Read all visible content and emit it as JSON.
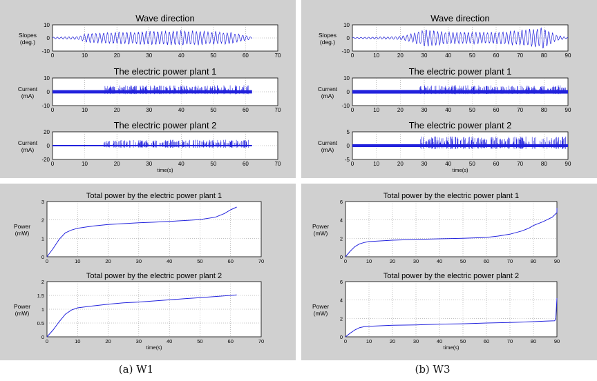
{
  "figure": {
    "captions": [
      "(a) W1",
      "(b) W3"
    ],
    "colors": {
      "line": "#2222dd",
      "panel_bg": "#d0d0d0",
      "plot_bg": "#ffffff",
      "grid": "#888888",
      "axis": "#000000"
    }
  },
  "chart_data": [
    {
      "type": "line",
      "panel": "a-top",
      "title": "Wave direction",
      "ylabel": [
        "Slopes",
        "(deg.)"
      ],
      "xlabel": "",
      "xlim": [
        0,
        70
      ],
      "ylim": [
        -10,
        10
      ],
      "xticks": [
        0,
        10,
        20,
        30,
        40,
        50,
        60,
        70
      ],
      "yticks": [
        -10,
        0,
        10
      ],
      "signal": {
        "kind": "oscillation",
        "x_start": 0,
        "x_end": 62,
        "amplitude_envelope": [
          [
            0,
            0.5
          ],
          [
            8,
            1
          ],
          [
            10,
            3
          ],
          [
            20,
            4
          ],
          [
            40,
            5
          ],
          [
            55,
            4
          ],
          [
            60,
            2
          ],
          [
            62,
            0.5
          ]
        ],
        "period": 1.2
      },
      "grid": true
    },
    {
      "type": "line",
      "panel": "a-top",
      "title": "The electric power plant 1",
      "ylabel": [
        "Current",
        "(mA)"
      ],
      "xlabel": "",
      "xlim": [
        0,
        70
      ],
      "ylim": [
        -10,
        10
      ],
      "xticks": [
        0,
        10,
        20,
        30,
        40,
        50,
        60,
        70
      ],
      "yticks": [
        -10,
        0,
        10
      ],
      "signal": {
        "kind": "spikes",
        "x_start": 0,
        "x_end": 62,
        "band": 1.2,
        "spike_start": 16,
        "spike_max": 5
      },
      "grid": true
    },
    {
      "type": "line",
      "panel": "a-top",
      "title": "The electric power plant 2",
      "ylabel": [
        "Current",
        "(mA)"
      ],
      "xlabel": "time(s)",
      "xlim": [
        0,
        70
      ],
      "ylim": [
        -20,
        20
      ],
      "xticks": [
        0,
        10,
        20,
        30,
        40,
        50,
        60,
        70
      ],
      "yticks": [
        -20,
        0,
        20
      ],
      "signal": {
        "kind": "spikes",
        "x_start": 0,
        "x_end": 62,
        "band": 1,
        "spike_start": 16,
        "spike_max": 9
      },
      "grid": true
    },
    {
      "type": "line",
      "panel": "b-top",
      "title": "Wave direction",
      "ylabel": [
        "Slopes",
        "(deg.)"
      ],
      "xlabel": "",
      "xlim": [
        0,
        90
      ],
      "ylim": [
        -10,
        10
      ],
      "xticks": [
        0,
        10,
        20,
        30,
        40,
        50,
        60,
        70,
        80,
        90
      ],
      "yticks": [
        -10,
        0,
        10
      ],
      "signal": {
        "kind": "oscillation",
        "x_start": 0,
        "x_end": 90,
        "amplitude_envelope": [
          [
            0,
            0.3
          ],
          [
            20,
            1
          ],
          [
            25,
            3
          ],
          [
            30,
            6
          ],
          [
            40,
            4
          ],
          [
            60,
            4
          ],
          [
            70,
            5
          ],
          [
            80,
            7
          ],
          [
            85,
            2
          ],
          [
            90,
            0.3
          ]
        ],
        "period": 1.6
      },
      "grid": true
    },
    {
      "type": "line",
      "panel": "b-top",
      "title": "The electric power plant 1",
      "ylabel": [
        "Current",
        "(mA)"
      ],
      "xlabel": "",
      "xlim": [
        0,
        90
      ],
      "ylim": [
        -10,
        10
      ],
      "xticks": [
        0,
        10,
        20,
        30,
        40,
        50,
        60,
        70,
        80,
        90
      ],
      "yticks": [
        -10,
        0,
        10
      ],
      "signal": {
        "kind": "spikes",
        "x_start": 0,
        "x_end": 90,
        "band": 1.3,
        "spike_start": 28,
        "spike_max": 5
      },
      "grid": true
    },
    {
      "type": "line",
      "panel": "b-top",
      "title": "The electric power plant 2",
      "ylabel": [
        "Current",
        "(mA)"
      ],
      "xlabel": "time(s)",
      "xlim": [
        0,
        90
      ],
      "ylim": [
        -5,
        5
      ],
      "xticks": [
        0,
        10,
        20,
        30,
        40,
        50,
        60,
        70,
        80,
        90
      ],
      "yticks": [
        -5,
        0,
        5
      ],
      "signal": {
        "kind": "spikes",
        "x_start": 0,
        "x_end": 90,
        "band": 0.5,
        "spike_start": 28,
        "spike_max": 3.5
      },
      "grid": true
    },
    {
      "type": "line",
      "panel": "a-bottom",
      "title": "Total power by the electric power plant 1",
      "ylabel": [
        "Power",
        "(mW)"
      ],
      "xlabel": "",
      "xlim": [
        0,
        70
      ],
      "ylim": [
        0,
        3
      ],
      "xticks": [
        0,
        10,
        20,
        30,
        40,
        50,
        60,
        70
      ],
      "yticks": [
        0,
        1,
        2,
        3
      ],
      "x": [
        0,
        2,
        4,
        6,
        8,
        10,
        15,
        20,
        25,
        30,
        35,
        40,
        45,
        50,
        55,
        58,
        60,
        62
      ],
      "y": [
        0,
        0.45,
        0.95,
        1.3,
        1.45,
        1.55,
        1.67,
        1.75,
        1.8,
        1.85,
        1.88,
        1.92,
        1.97,
        2.02,
        2.15,
        2.35,
        2.55,
        2.7
      ],
      "grid": true
    },
    {
      "type": "line",
      "panel": "a-bottom",
      "title": "Total power by the electric power plant 2",
      "ylabel": [
        "Power",
        "(mW)"
      ],
      "xlabel": "time(s)",
      "xlim": [
        0,
        70
      ],
      "ylim": [
        0,
        2
      ],
      "xticks": [
        0,
        10,
        20,
        30,
        40,
        50,
        60,
        70
      ],
      "yticks": [
        0,
        0.5,
        1,
        1.5,
        2
      ],
      "x": [
        0,
        2,
        4,
        6,
        8,
        10,
        15,
        20,
        25,
        30,
        35,
        40,
        45,
        50,
        55,
        60,
        62
      ],
      "y": [
        0,
        0.25,
        0.55,
        0.82,
        0.97,
        1.05,
        1.12,
        1.18,
        1.23,
        1.26,
        1.3,
        1.34,
        1.38,
        1.42,
        1.46,
        1.5,
        1.52
      ],
      "grid": true
    },
    {
      "type": "line",
      "panel": "b-bottom",
      "title": "Total power by the electric power plant 1",
      "ylabel": [
        "Power",
        "(mW)"
      ],
      "xlabel": "",
      "xlim": [
        0,
        90
      ],
      "ylim": [
        0,
        6
      ],
      "xticks": [
        0,
        10,
        20,
        30,
        40,
        50,
        60,
        70,
        80,
        90
      ],
      "yticks": [
        0,
        2,
        4,
        6
      ],
      "x": [
        0,
        2,
        4,
        6,
        8,
        10,
        20,
        30,
        40,
        50,
        60,
        65,
        70,
        75,
        78,
        80,
        84,
        88,
        90,
        90
      ],
      "y": [
        0,
        0.6,
        1.1,
        1.4,
        1.55,
        1.65,
        1.8,
        1.88,
        1.95,
        2.0,
        2.1,
        2.25,
        2.45,
        2.8,
        3.1,
        3.4,
        3.8,
        4.3,
        4.8,
        5.3
      ],
      "grid": true
    },
    {
      "type": "line",
      "panel": "b-bottom",
      "title": "Total power by the electric power plant 2",
      "ylabel": [
        "Power",
        "(mW)"
      ],
      "xlabel": "time(s)",
      "xlim": [
        0,
        90
      ],
      "ylim": [
        0,
        6
      ],
      "xticks": [
        0,
        10,
        20,
        30,
        40,
        50,
        60,
        70,
        80,
        90
      ],
      "yticks": [
        0,
        2,
        4,
        6
      ],
      "x": [
        0,
        2,
        4,
        6,
        8,
        10,
        20,
        30,
        40,
        50,
        60,
        70,
        80,
        85,
        89,
        89.5,
        90
      ],
      "y": [
        0,
        0.4,
        0.75,
        1.0,
        1.1,
        1.15,
        1.25,
        1.3,
        1.38,
        1.42,
        1.5,
        1.55,
        1.65,
        1.7,
        1.75,
        1.9,
        4.2
      ],
      "grid": true
    }
  ]
}
